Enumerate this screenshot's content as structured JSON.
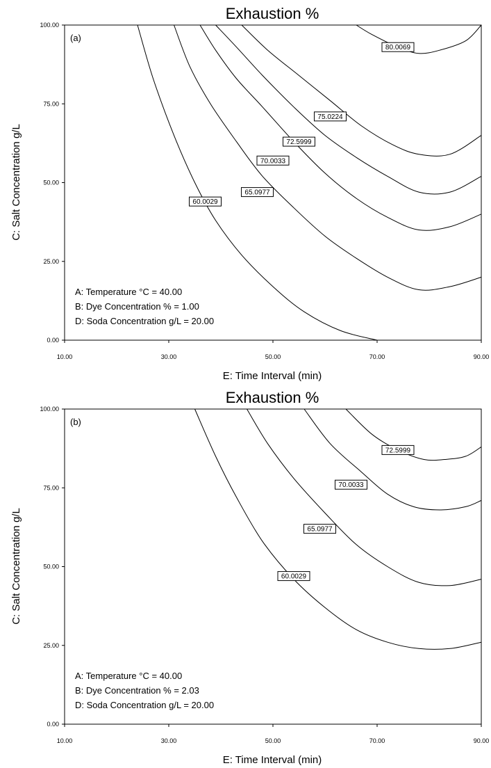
{
  "chart_data": [
    {
      "type": "contour",
      "panel_label": "(a)",
      "title": "Exhaustion %",
      "xlabel": "E: Time Interval (min)",
      "ylabel": "C: Salt Concentration g/L",
      "xlim": [
        10,
        90
      ],
      "ylim": [
        0,
        100
      ],
      "xticks": [
        "10.00",
        "30.00",
        "50.00",
        "70.00",
        "90.00"
      ],
      "yticks": [
        "0.00",
        "25.00",
        "50.00",
        "75.00",
        "100.00"
      ],
      "annotations": [
        "A: Temperature °C = 40.00",
        "B: Dye Concentration % = 1.00",
        "D: Soda Concentration g/L = 20.00"
      ],
      "series": [
        {
          "name": "60.0029",
          "label_at": [
            37,
            44
          ],
          "points": [
            [
              24,
              100
            ],
            [
              27,
              83
            ],
            [
              31,
              65
            ],
            [
              35,
              50
            ],
            [
              39,
              38
            ],
            [
              44,
              27
            ],
            [
              50,
              17
            ],
            [
              56,
              9
            ],
            [
              63,
              3
            ],
            [
              70,
              0
            ]
          ]
        },
        {
          "name": "65.0977",
          "label_at": [
            47,
            47
          ],
          "points": [
            [
              31,
              100
            ],
            [
              34,
              87
            ],
            [
              38,
              75
            ],
            [
              43,
              63
            ],
            [
              48,
              52
            ],
            [
              54,
              42
            ],
            [
              60,
              33
            ],
            [
              66,
              26
            ],
            [
              72,
              20
            ],
            [
              78,
              16
            ],
            [
              84,
              17
            ],
            [
              90,
              20
            ]
          ]
        },
        {
          "name": "70.0033",
          "label_at": [
            50,
            57
          ],
          "points": [
            [
              36,
              100
            ],
            [
              39,
              92
            ],
            [
              43,
              83
            ],
            [
              48,
              74
            ],
            [
              54,
              63
            ],
            [
              60,
              53
            ],
            [
              66,
              45
            ],
            [
              72,
              39
            ],
            [
              78,
              35
            ],
            [
              84,
              36
            ],
            [
              90,
              40
            ]
          ]
        },
        {
          "name": "72.5999",
          "label_at": [
            55,
            63
          ],
          "points": [
            [
              39,
              100
            ],
            [
              43,
              93
            ],
            [
              48,
              84
            ],
            [
              54,
              74
            ],
            [
              60,
              65
            ],
            [
              66,
              58
            ],
            [
              72,
              52
            ],
            [
              78,
              47
            ],
            [
              84,
              47
            ],
            [
              90,
              52
            ]
          ]
        },
        {
          "name": "75.0224",
          "label_at": [
            61,
            71
          ],
          "points": [
            [
              44,
              100
            ],
            [
              49,
              92
            ],
            [
              55,
              84
            ],
            [
              61,
              76
            ],
            [
              67,
              68
            ],
            [
              73,
              62
            ],
            [
              78,
              59
            ],
            [
              84,
              59
            ],
            [
              90,
              65
            ]
          ]
        },
        {
          "name": "80.0069",
          "label_at": [
            74,
            93
          ],
          "points": [
            [
              66,
              100
            ],
            [
              69,
              97
            ],
            [
              74,
              93
            ],
            [
              78,
              91
            ],
            [
              82,
              92
            ],
            [
              87,
              95
            ],
            [
              90,
              100
            ]
          ]
        }
      ]
    },
    {
      "type": "contour",
      "panel_label": "(b)",
      "title": "Exhaustion %",
      "xlabel": "E: Time Interval (min)",
      "ylabel": "C: Salt Concentration g/L",
      "xlim": [
        10,
        90
      ],
      "ylim": [
        0,
        100
      ],
      "xticks": [
        "10.00",
        "30.00",
        "50.00",
        "70.00",
        "90.00"
      ],
      "yticks": [
        "0.00",
        "25.00",
        "50.00",
        "75.00",
        "100.00"
      ],
      "annotations": [
        "A: Temperature °C = 40.00",
        "B: Dye Concentration % = 2.03",
        "D: Soda Concentration g/L = 20.00"
      ],
      "series": [
        {
          "name": "60.0029",
          "label_at": [
            54,
            47
          ],
          "points": [
            [
              35,
              100
            ],
            [
              39,
              85
            ],
            [
              43,
              72
            ],
            [
              48,
              58
            ],
            [
              54,
              46
            ],
            [
              60,
              37
            ],
            [
              66,
              30
            ],
            [
              72,
              26
            ],
            [
              78,
              24
            ],
            [
              84,
              24
            ],
            [
              90,
              26
            ]
          ]
        },
        {
          "name": "65.0977",
          "label_at": [
            59,
            62
          ],
          "points": [
            [
              45,
              100
            ],
            [
              49,
              89
            ],
            [
              54,
              78
            ],
            [
              60,
              67
            ],
            [
              66,
              57
            ],
            [
              72,
              50
            ],
            [
              78,
              45
            ],
            [
              84,
              44
            ],
            [
              90,
              46
            ]
          ]
        },
        {
          "name": "70.0033",
          "label_at": [
            65,
            76
          ],
          "points": [
            [
              56,
              100
            ],
            [
              61,
              89
            ],
            [
              67,
              80
            ],
            [
              72,
              73
            ],
            [
              77,
              69
            ],
            [
              82,
              68
            ],
            [
              87,
              69
            ],
            [
              90,
              71
            ]
          ]
        },
        {
          "name": "72.5999",
          "label_at": [
            74,
            87
          ],
          "points": [
            [
              64,
              100
            ],
            [
              69,
              92
            ],
            [
              74,
              87
            ],
            [
              79,
              84
            ],
            [
              83,
              84
            ],
            [
              87,
              85
            ],
            [
              90,
              88
            ]
          ]
        }
      ]
    }
  ]
}
